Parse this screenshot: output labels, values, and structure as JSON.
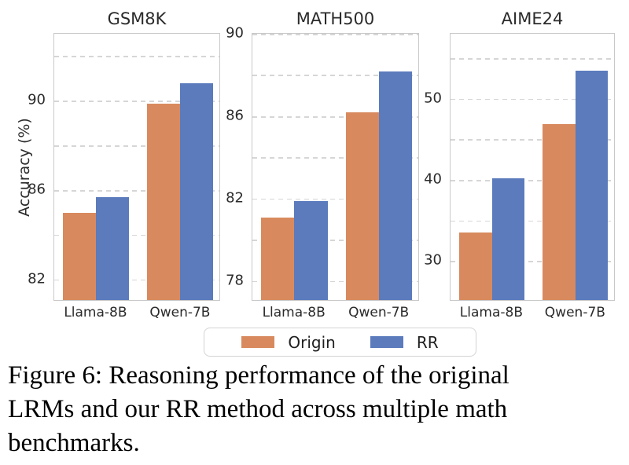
{
  "figure": {
    "caption": {
      "lines": [
        "Figure 6: Reasoning performance of the original",
        "LRMs and our RR method across multiple math",
        "benchmarks."
      ],
      "full_text": "Figure 6: Reasoning performance of the original LRMs and our RR method across multiple math benchmarks."
    }
  },
  "legend": {
    "items": [
      {
        "label": "Origin",
        "color": "#D88A5E"
      },
      {
        "label": "RR",
        "color": "#5B7BBD"
      }
    ]
  },
  "colors": {
    "series": [
      "#D88A5E",
      "#5B7BBD"
    ],
    "gridline": "#D6D6D6",
    "spine": "#C9C9C9",
    "text": "#2B2B2B",
    "caption_text": "#000000"
  },
  "chart_data": [
    {
      "type": "bar",
      "title": "GSM8K",
      "categories": [
        "Llama-8B",
        "Qwen-7B"
      ],
      "series": [
        {
          "name": "Origin",
          "values": [
            84.9,
            89.8
          ]
        },
        {
          "name": "RR",
          "values": [
            85.6,
            90.7
          ]
        }
      ],
      "xlabel": "",
      "ylabel": "Accuracy (%)",
      "ylim": [
        81,
        93
      ],
      "ytick_labels": [
        82,
        86,
        90
      ],
      "gridlines": [
        82,
        84,
        86,
        88,
        90,
        92
      ],
      "grid": true,
      "legend_position": "below-figure"
    },
    {
      "type": "bar",
      "title": "MATH500",
      "categories": [
        "Llama-8B",
        "Qwen-7B"
      ],
      "series": [
        {
          "name": "Origin",
          "values": [
            81.0,
            86.1
          ]
        },
        {
          "name": "RR",
          "values": [
            81.8,
            88.1
          ]
        }
      ],
      "xlabel": "",
      "ylabel": "",
      "ylim": [
        77,
        90
      ],
      "ytick_labels": [
        78,
        82,
        86,
        90
      ],
      "gridlines": [
        78,
        80,
        82,
        84,
        86,
        88,
        90
      ],
      "grid": true
    },
    {
      "type": "bar",
      "title": "AIME24",
      "categories": [
        "Llama-8B",
        "Qwen-7B"
      ],
      "series": [
        {
          "name": "Origin",
          "values": [
            33.3,
            46.7
          ]
        },
        {
          "name": "RR",
          "values": [
            40.0,
            53.3
          ]
        }
      ],
      "xlabel": "",
      "ylabel": "",
      "ylim": [
        25,
        58
      ],
      "ytick_labels": [
        30,
        40,
        50
      ],
      "gridlines": [
        30,
        35,
        40,
        45,
        50,
        55
      ],
      "grid": true
    }
  ]
}
